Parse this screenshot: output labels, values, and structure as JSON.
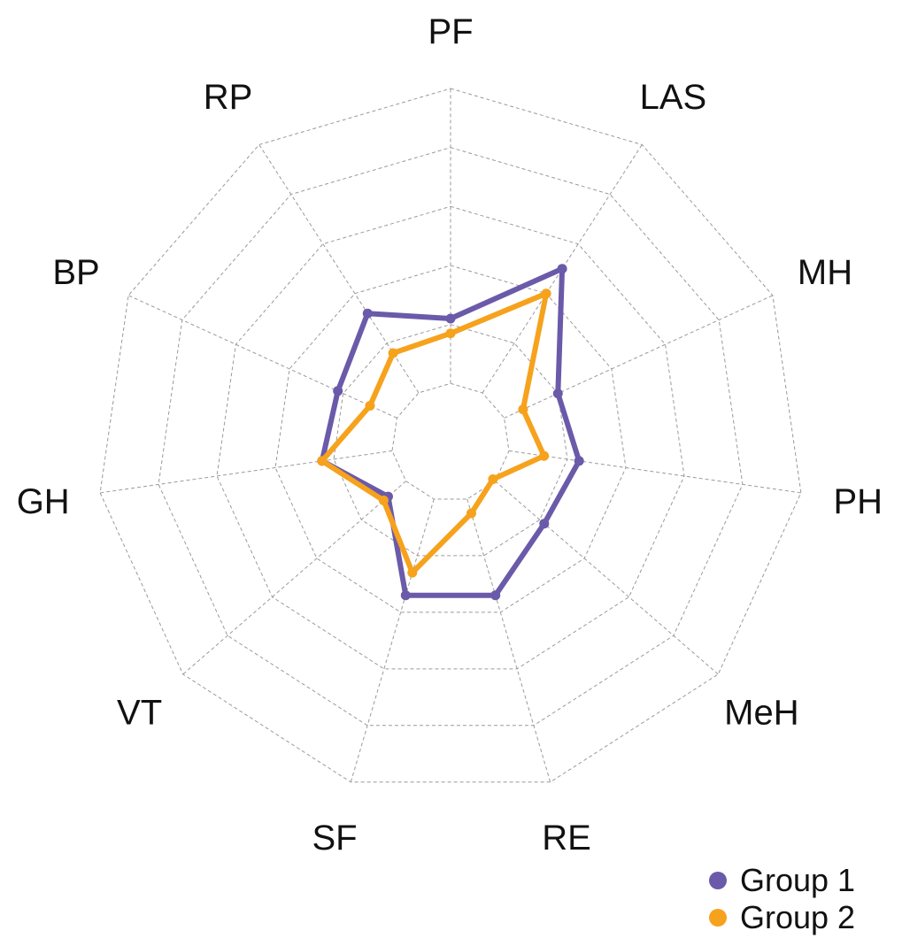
{
  "chart_data": {
    "type": "radar",
    "categories": [
      "PF",
      "LAS",
      "MH",
      "PH",
      "MeH",
      "RE",
      "SF",
      "VT",
      "GH",
      "BP",
      "RP"
    ],
    "rlim": [
      0,
      6
    ],
    "rings": 6,
    "grid": true,
    "legend_position": "bottom-right",
    "series": [
      {
        "name": "Group 1",
        "color": "#6a5aa9",
        "values": [
          2.1,
          3.5,
          2.0,
          2.2,
          2.1,
          2.7,
          2.7,
          1.4,
          2.2,
          2.1,
          2.6
        ]
      },
      {
        "name": "Group 2",
        "color": "#f6a21d",
        "values": [
          1.85,
          3.0,
          1.35,
          1.6,
          0.95,
          1.25,
          2.3,
          1.5,
          2.2,
          1.5,
          1.8
        ]
      }
    ]
  }
}
